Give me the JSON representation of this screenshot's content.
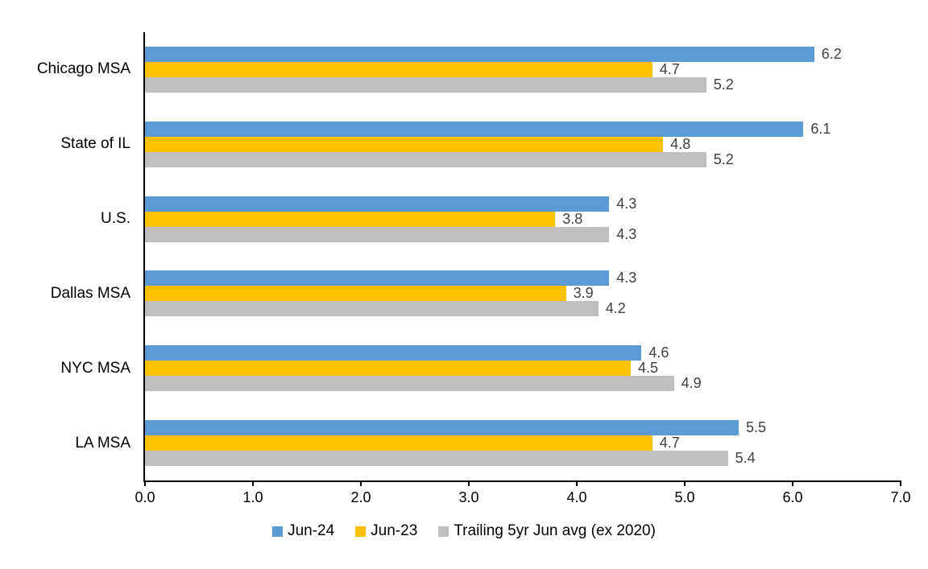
{
  "chart_data": {
    "type": "bar",
    "orientation": "horizontal",
    "title": "",
    "categories": [
      "Chicago MSA",
      "State of IL",
      "U.S.",
      "Dallas MSA",
      "NYC MSA",
      "LA MSA"
    ],
    "series": [
      {
        "name": "Jun-24",
        "color": "#5B9BD5",
        "values": [
          6.2,
          6.1,
          4.3,
          4.3,
          4.6,
          5.5
        ]
      },
      {
        "name": "Jun-23",
        "color": "#FFC000",
        "values": [
          4.7,
          4.8,
          3.8,
          3.9,
          4.5,
          4.7
        ]
      },
      {
        "name": "Trailing 5yr Jun avg (ex 2020)",
        "color": "#BFBFBF",
        "values": [
          5.2,
          5.2,
          4.3,
          4.2,
          4.9,
          5.4
        ]
      }
    ],
    "xlim": [
      0,
      7
    ],
    "x_ticks": [
      "0.0",
      "1.0",
      "2.0",
      "3.0",
      "4.0",
      "5.0",
      "6.0",
      "7.0"
    ],
    "grid": false,
    "data_labels": true,
    "legend_position": "bottom"
  },
  "colors": {
    "axis": "#000000",
    "data_label": "#404040",
    "text": "#000000",
    "background": "#FFFFFF"
  }
}
